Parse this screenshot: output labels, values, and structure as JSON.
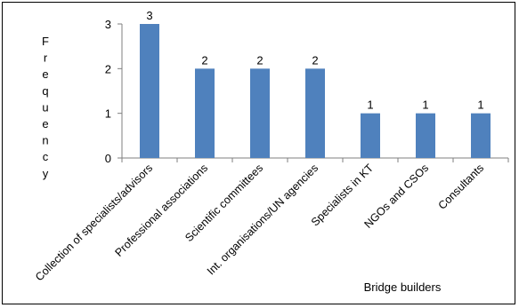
{
  "chart_data": {
    "type": "bar",
    "categories": [
      "Collection of specialists/advisors",
      "Professional associations",
      "Scientific committees",
      "Int. organisations/UN agencies",
      "Specialists in KT",
      "NGOs and CSOs",
      "Consultants"
    ],
    "values": [
      3,
      2,
      2,
      2,
      1,
      1,
      1
    ],
    "title": "",
    "xlabel": "Bridge builders",
    "ylabel": "Frequency",
    "ylim": [
      0,
      3
    ],
    "yticks": [
      "0",
      "1",
      "2",
      "3"
    ],
    "grid": false,
    "legend": "none",
    "bar_color": "#4F81BD"
  }
}
